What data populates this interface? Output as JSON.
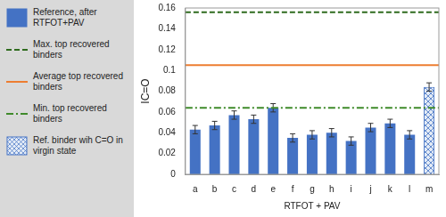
{
  "chart_data": {
    "type": "bar",
    "x_label": "RTFOT + PAV",
    "y_label": "IC=O",
    "categories": [
      "a",
      "b",
      "c",
      "d",
      "e",
      "f",
      "g",
      "h",
      "i",
      "j",
      "k",
      "l",
      "m"
    ],
    "series": [
      {
        "name": "Reference, after RTFOT+PAV",
        "type": "bar",
        "color": "#4472c4",
        "values": [
          0.043,
          0.047,
          0.057,
          0.053,
          0.064,
          0.035,
          0.038,
          0.04,
          0.032,
          0.045,
          0.049,
          0.038,
          null
        ],
        "errors": [
          0.004,
          0.004,
          0.004,
          0.004,
          0.004,
          0.004,
          0.004,
          0.004,
          0.004,
          0.004,
          0.004,
          0.004,
          null
        ]
      },
      {
        "name": "Max. top recovered binders",
        "type": "hline",
        "color": "#2f6b1e",
        "line_style": "dashed",
        "value": 0.156
      },
      {
        "name": "Average top recovered binders",
        "type": "hline",
        "color": "#ed7d31",
        "line_style": "solid",
        "value": 0.105
      },
      {
        "name": "Min. top recovered binders",
        "type": "hline",
        "color": "#3f8a2a",
        "line_style": "dashdot",
        "value": 0.064
      },
      {
        "name": "Ref. binder wih C=O in virgin state",
        "type": "bar",
        "color": "#4472c4",
        "marker": "crosshatch",
        "values": [
          null,
          null,
          null,
          null,
          null,
          null,
          null,
          null,
          null,
          null,
          null,
          null,
          0.084
        ],
        "errors": [
          null,
          null,
          null,
          null,
          null,
          null,
          null,
          null,
          null,
          null,
          null,
          null,
          0.004
        ]
      }
    ],
    "ylim": [
      0,
      0.16
    ],
    "yticks": [
      0,
      0.02,
      0.04,
      0.06,
      0.08,
      0.1,
      0.12,
      0.14,
      0.16
    ],
    "grid": false,
    "legend": "left"
  }
}
